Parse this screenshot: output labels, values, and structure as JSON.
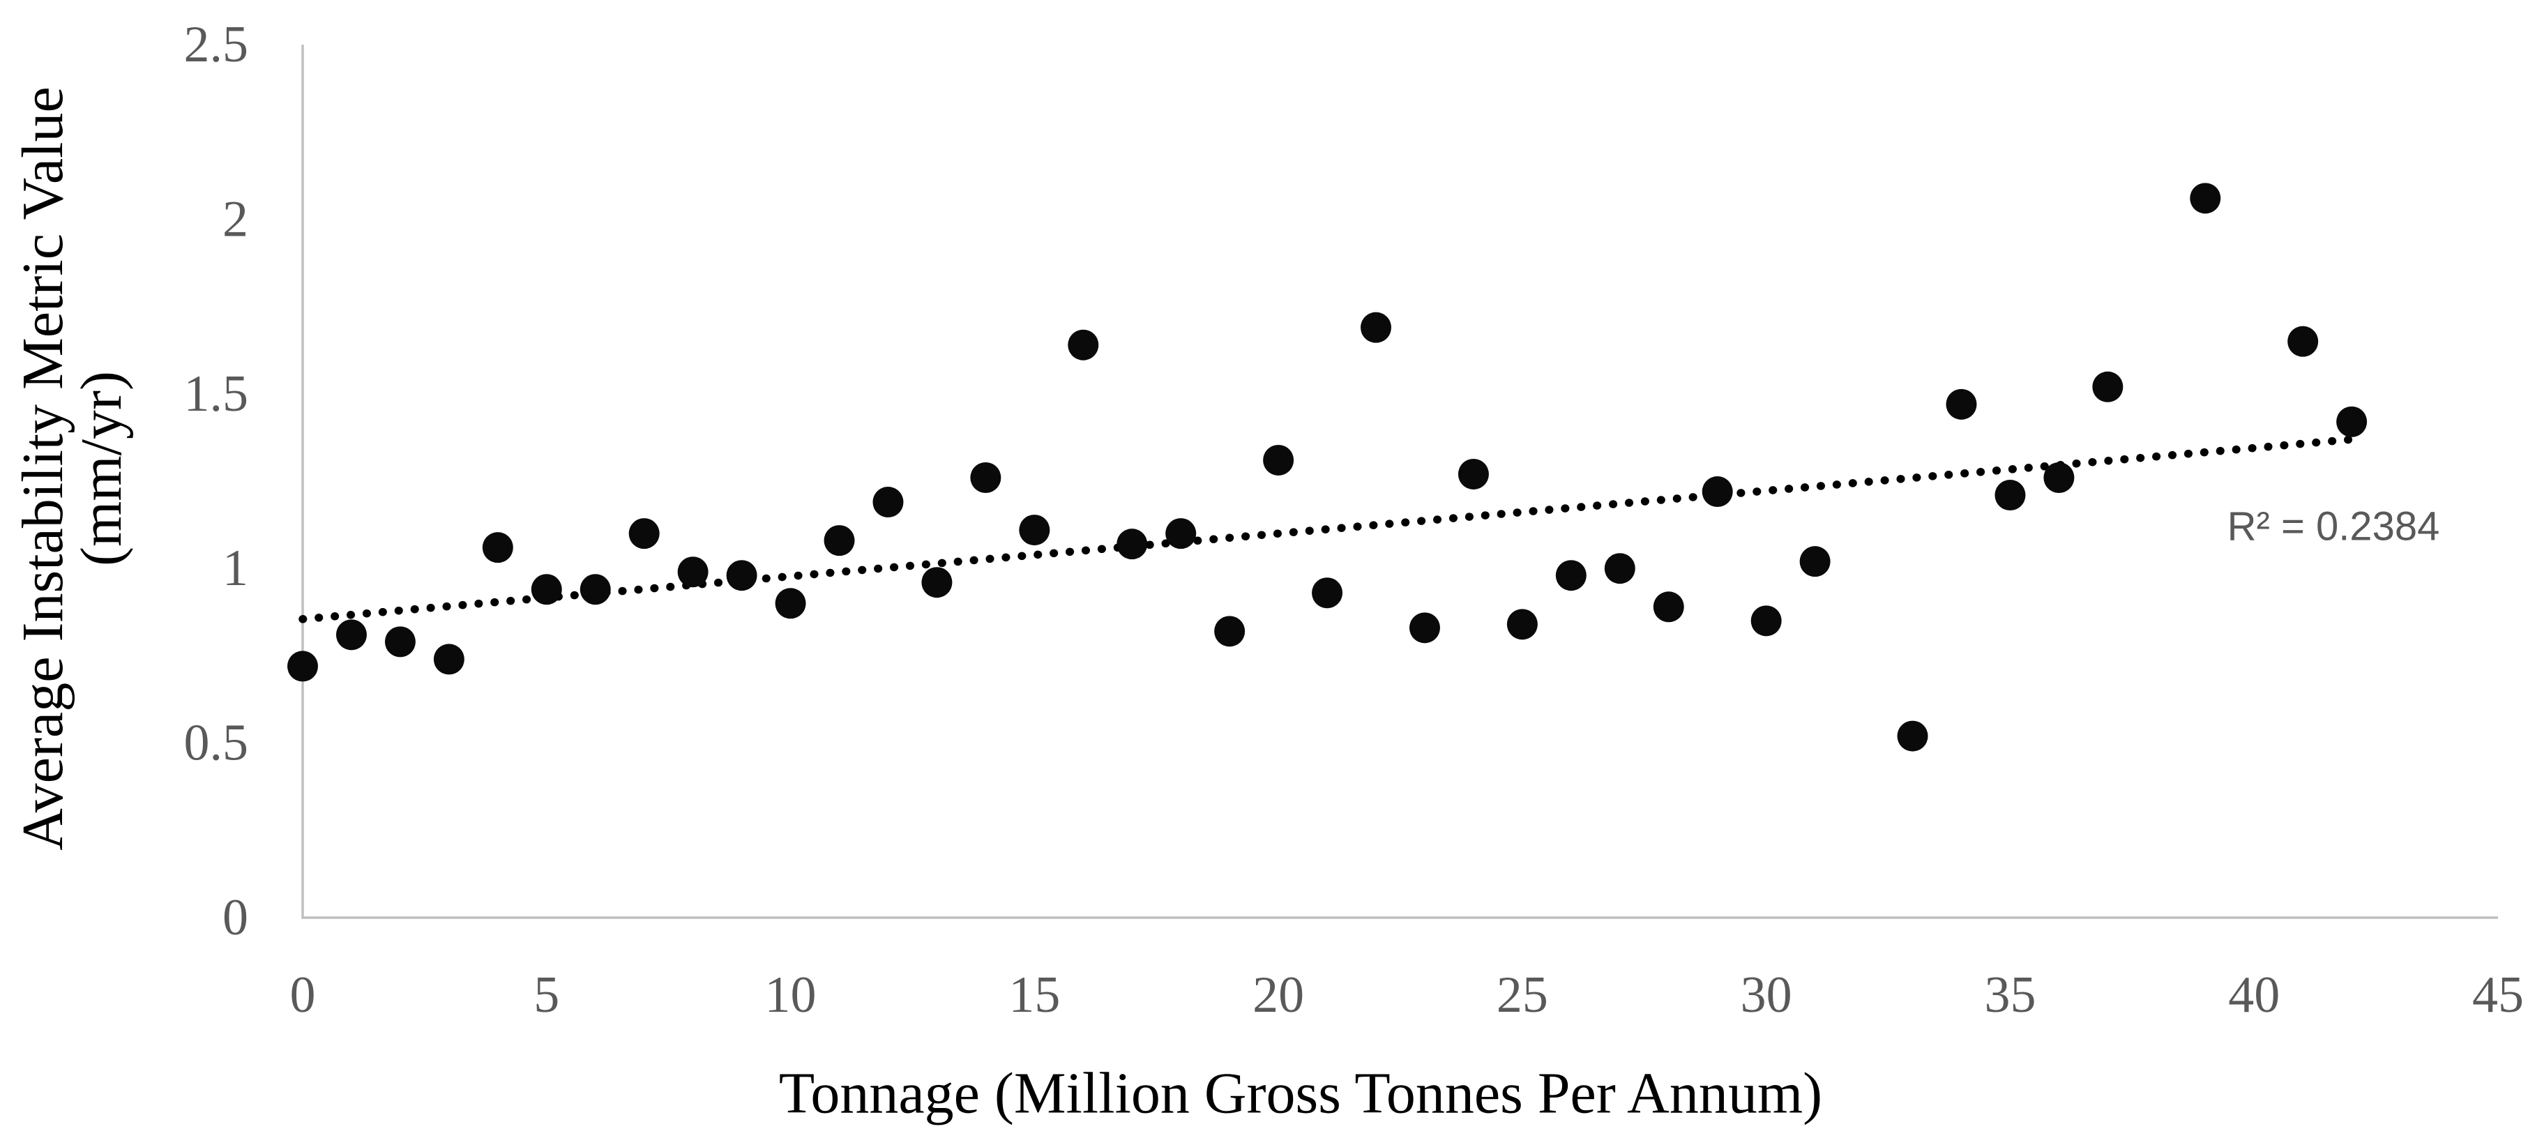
{
  "chart_data": {
    "type": "scatter",
    "title": "",
    "xlabel": "Tonnage (Million Gross Tonnes Per Annum)",
    "ylabel_lines": [
      "Average Instability Metric Value",
      "(mm/yr)"
    ],
    "xlim": [
      0,
      45
    ],
    "ylim": [
      0,
      2.5
    ],
    "grid": false,
    "legend": null,
    "x_ticks": [
      {
        "v": 0,
        "label": "0"
      },
      {
        "v": 5,
        "label": "5"
      },
      {
        "v": 10,
        "label": "10"
      },
      {
        "v": 15,
        "label": "15"
      },
      {
        "v": 20,
        "label": "20"
      },
      {
        "v": 25,
        "label": "25"
      },
      {
        "v": 30,
        "label": "30"
      },
      {
        "v": 35,
        "label": "35"
      },
      {
        "v": 40,
        "label": "40"
      },
      {
        "v": 45,
        "label": "45"
      }
    ],
    "y_ticks": [
      {
        "v": 0,
        "label": "0"
      },
      {
        "v": 0.5,
        "label": "0.5"
      },
      {
        "v": 1,
        "label": "1"
      },
      {
        "v": 1.5,
        "label": "1.5"
      },
      {
        "v": 2,
        "label": "2"
      },
      {
        "v": 2.5,
        "label": "2.5"
      }
    ],
    "points": [
      [
        0,
        0.72
      ],
      [
        1,
        0.81
      ],
      [
        2,
        0.79
      ],
      [
        3,
        0.74
      ],
      [
        4,
        1.06
      ],
      [
        5,
        0.94
      ],
      [
        6,
        0.94
      ],
      [
        7,
        1.1
      ],
      [
        8,
        0.99
      ],
      [
        9,
        0.98
      ],
      [
        10,
        0.9
      ],
      [
        11,
        1.08
      ],
      [
        12,
        1.19
      ],
      [
        13,
        0.96
      ],
      [
        14,
        1.26
      ],
      [
        15,
        1.11
      ],
      [
        16,
        1.64
      ],
      [
        17,
        1.07
      ],
      [
        18,
        1.1
      ],
      [
        19,
        0.82
      ],
      [
        20,
        1.31
      ],
      [
        21,
        0.93
      ],
      [
        22,
        1.69
      ],
      [
        23,
        0.83
      ],
      [
        24,
        1.27
      ],
      [
        25,
        0.84
      ],
      [
        26,
        0.98
      ],
      [
        27,
        1.0
      ],
      [
        28,
        0.89
      ],
      [
        29,
        1.22
      ],
      [
        30,
        0.85
      ],
      [
        31,
        1.02
      ],
      [
        33,
        0.52
      ],
      [
        34,
        1.47
      ],
      [
        35,
        1.21
      ],
      [
        36,
        1.26
      ],
      [
        37,
        1.52
      ],
      [
        39,
        2.06
      ],
      [
        41,
        1.65
      ],
      [
        42,
        1.42
      ]
    ],
    "marker": {
      "shape": "circle",
      "color": "#0a0a0a",
      "radius_px": 22
    },
    "trendline": {
      "style": "dotted",
      "color": "#000000",
      "intercept": 0.855,
      "slope": 0.01225,
      "x_start": 0,
      "x_end": 42.2
    },
    "annotation": {
      "text": "R² = 0.2384",
      "color": "#595959"
    },
    "axis_color": "#bfbfbf",
    "tick_label_color": "#595959",
    "title_color": "#000000"
  }
}
